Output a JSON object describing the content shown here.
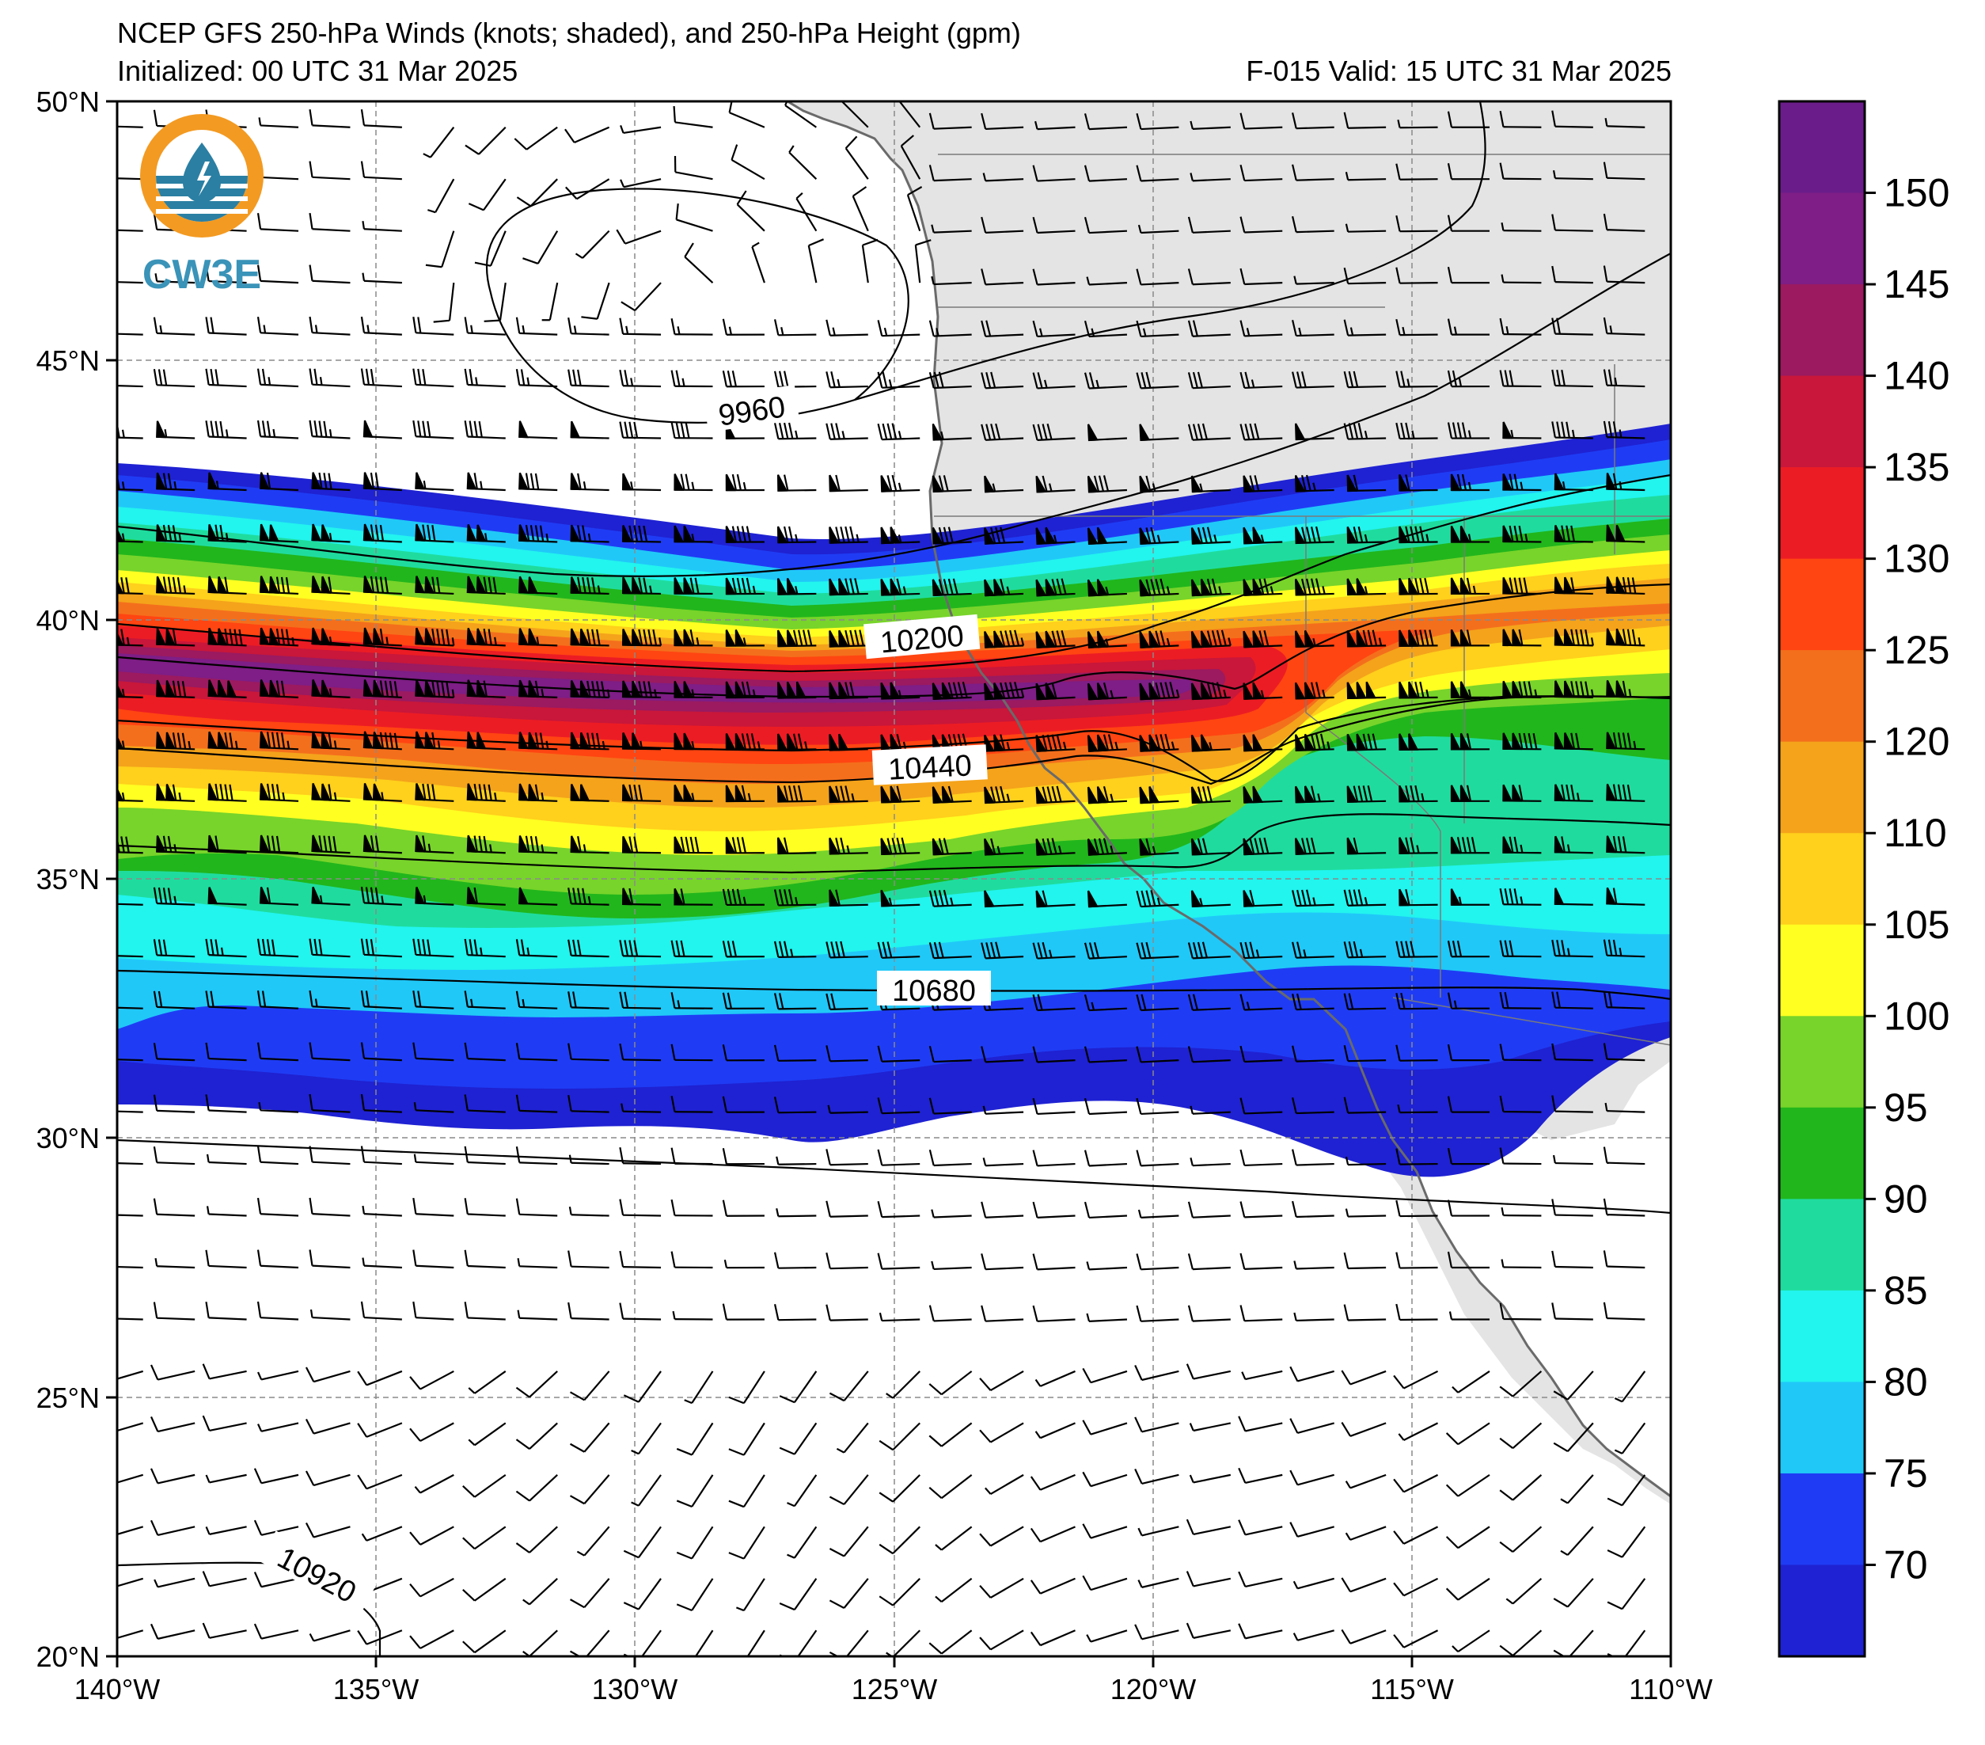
{
  "header": {
    "title": "NCEP GFS 250-hPa Winds (knots; shaded), and 250-hPa Height (gpm)",
    "initialized": "Initialized: 00 UTC 31 Mar 2025",
    "valid": "F-015  Valid: 15 UTC 31 Mar 2025"
  },
  "logo": {
    "text": "CW3E"
  },
  "axes": {
    "lat_labels": [
      "50°N",
      "45°N",
      "40°N",
      "35°N",
      "30°N",
      "25°N",
      "20°N"
    ],
    "lon_labels": [
      "140°W",
      "135°W",
      "130°W",
      "125°W",
      "120°W",
      "115°W",
      "110°W"
    ]
  },
  "colorbar": {
    "labels": [
      "150",
      "145",
      "140",
      "135",
      "130",
      "125",
      "120",
      "110",
      "105",
      "100",
      "95",
      "90",
      "85",
      "80",
      "75",
      "70"
    ],
    "colors": [
      "#6a1d8a",
      "#7e1e86",
      "#9b1a60",
      "#c8173a",
      "#ec1c24",
      "#ff4512",
      "#f46f1c",
      "#f4a31b",
      "#ffd01c",
      "#ffff22",
      "#78d42a",
      "#21b61c",
      "#1fdc9e",
      "#22f4ee",
      "#20c8f8",
      "#1f3cf4",
      "#1f22d2"
    ]
  },
  "contours": {
    "labels": [
      "9960",
      "10200",
      "10440",
      "10680",
      "10920"
    ]
  },
  "colors": {
    "land": "#e4e4e4",
    "ocean": "#ffffff",
    "coast": "#6a6a6a"
  }
}
